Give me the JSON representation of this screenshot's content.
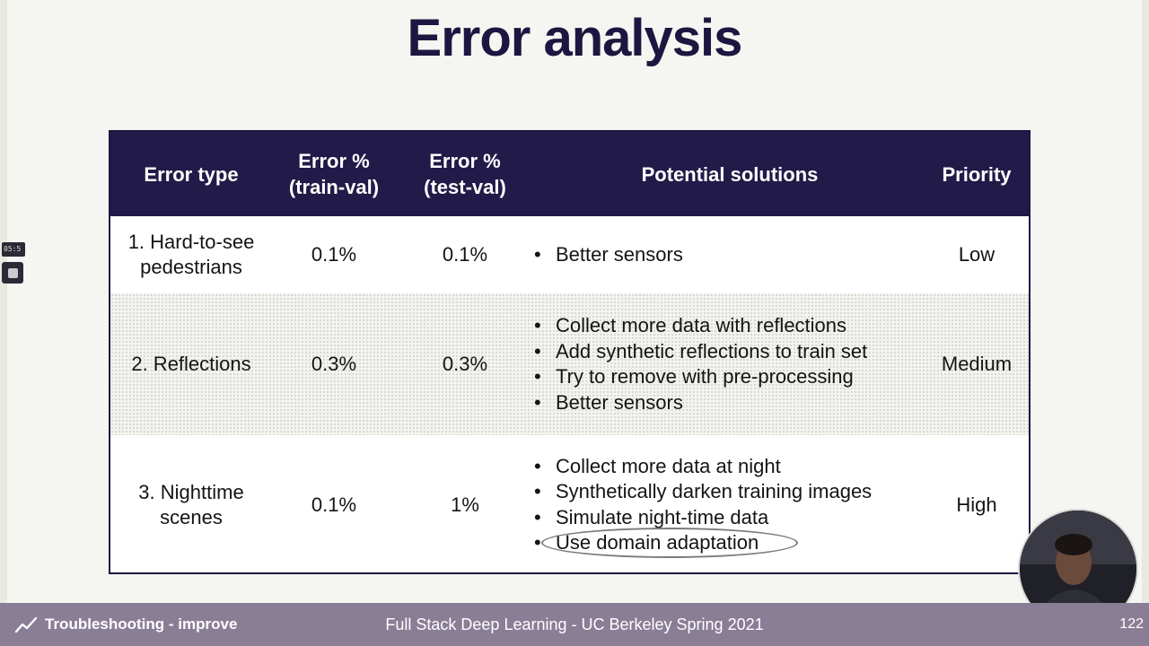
{
  "slide": {
    "title": "Error analysis"
  },
  "table": {
    "headers": {
      "error_type": "Error type",
      "train_val": [
        "Error %",
        "(train-val)"
      ],
      "test_val": [
        "Error %",
        "(test-val)"
      ],
      "solutions": "Potential solutions",
      "priority": "Priority"
    },
    "rows": [
      {
        "error_type": [
          "1. Hard-to-see",
          "pedestrians"
        ],
        "train_val": "0.1%",
        "test_val": "0.1%",
        "solutions": [
          "Better sensors"
        ],
        "priority": "Low"
      },
      {
        "error_type": [
          "2. Reflections"
        ],
        "train_val": "0.3%",
        "test_val": "0.3%",
        "solutions": [
          "Collect more data with reflections",
          "Add synthetic reflections to train set",
          "Try to remove with pre-processing",
          "Better sensors"
        ],
        "priority": "Medium"
      },
      {
        "error_type": [
          "3. Nighttime",
          "scenes"
        ],
        "train_val": "0.1%",
        "test_val": "1%",
        "solutions": [
          "Collect more data at night",
          "Synthetically darken training images",
          "Simulate night-time data",
          "Use domain adaptation"
        ],
        "priority": "High"
      }
    ]
  },
  "footer": {
    "section": "Troubleshooting - improve",
    "course": "Full Stack Deep Learning - UC Berkeley Spring 2021",
    "page": "122"
  },
  "side_widget": {
    "time": "05:5"
  },
  "colors": {
    "header_bg": "#221a48",
    "title": "#1e1640",
    "footer_bg": "#8a7e96"
  }
}
